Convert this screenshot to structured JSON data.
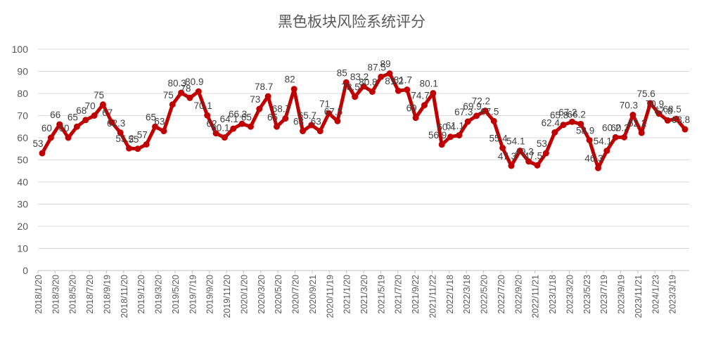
{
  "chart_data": {
    "type": "line",
    "title": "黑色板块风险系统评分",
    "xlabel": "",
    "ylabel": "",
    "ylim": [
      0,
      100
    ],
    "yticks": [
      0,
      10,
      20,
      30,
      40,
      50,
      60,
      70,
      80,
      90,
      100
    ],
    "grid": true,
    "legend": "none",
    "x_tick_labels": [
      "2018/1/20",
      "2018/3/20",
      "2018/5/20",
      "2018/7/20",
      "2018/9/19",
      "2018/11/20",
      "2019/1/20",
      "2019/3/20",
      "2019/5/20",
      "2019/7/19",
      "2019/9/20",
      "2019/11/20",
      "2020/1/20",
      "2020/3/20",
      "2020/5/20",
      "2020/7/20",
      "2020/9/21",
      "2020/11/19",
      "2021/1/20",
      "2021/3/20",
      "2021/5/19",
      "2021/7/20",
      "2021/9/22",
      "2021/11/22",
      "2022/1/18",
      "2022/3/18",
      "2022/5/20",
      "2022/7/20",
      "2022/9/20",
      "2022/11/21",
      "2023/1/18",
      "2023/3/20",
      "2023/5/23",
      "2023/7/19",
      "2023/9/19",
      "2023/11/21",
      "2024/1/23",
      "2023/3/19"
    ],
    "series": [
      {
        "name": "",
        "color": "#c00000",
        "values": [
          53,
          60,
          66,
          60,
          65,
          68,
          70,
          75,
          67,
          62.3,
          55.2,
          55,
          57,
          65,
          63,
          75,
          80.3,
          78,
          80.9,
          70.1,
          62,
          60.1,
          64.1,
          66.3,
          65,
          73,
          78.7,
          65,
          68.7,
          82,
          63,
          65.7,
          63,
          71,
          67.5,
          85,
          78.5,
          83.2,
          80.8,
          87.5,
          89,
          81.2,
          81.7,
          69,
          74.7,
          80.1,
          56.9,
          60.4,
          61.1,
          67.3,
          69.9,
          72.2,
          67.5,
          55.4,
          47.3,
          54.1,
          49.3,
          47.5,
          53,
          62.4,
          65.8,
          67.2,
          66.2,
          58.9,
          46.3,
          54.1,
          60.2,
          60.2,
          70.3,
          62.2,
          75.6,
          70.9,
          67.8,
          68.5,
          63.8
        ]
      }
    ]
  }
}
